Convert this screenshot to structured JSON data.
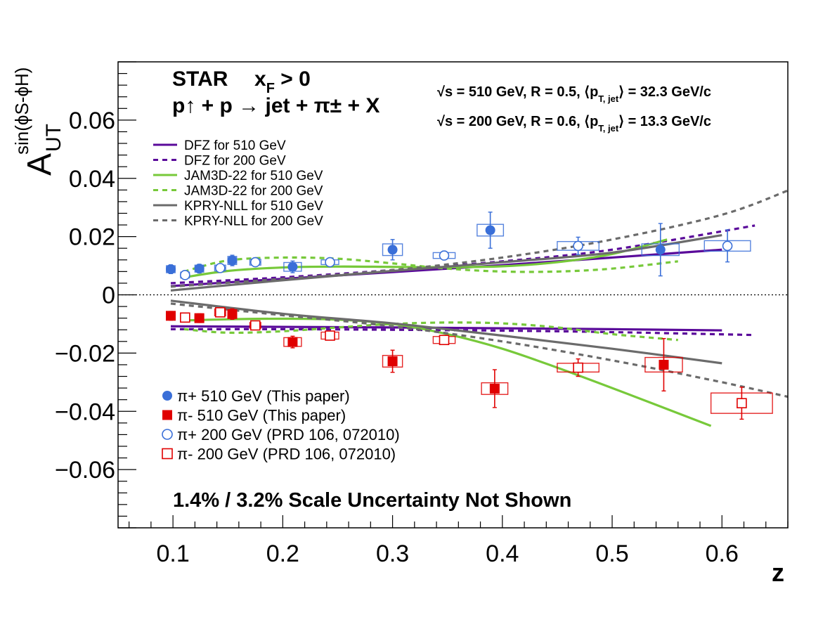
{
  "chart_data": {
    "type": "scatter",
    "header_line1": "STAR",
    "header_xf": "x",
    "header_xf_sub": "F",
    "header_xf_cut": " > 0",
    "header_line2": "p↑ + p → jet + π± + X",
    "energy_line1": "√s = 510 GeV, R = 0.5, ⟨p",
    "energy_line1_sub": "T, jet",
    "energy_line1_tail": "⟩ = 32.3 GeV/c",
    "energy_line2": "√s = 200 GeV, R = 0.6, ⟨p",
    "energy_line2_sub": "T, jet",
    "energy_line2_tail": "⟩ = 13.3 GeV/c",
    "footer": "1.4% / 3.2% Scale Uncertainty Not Shown",
    "xlabel": "z",
    "ylabel_main": "A",
    "ylabel_sub": "UT",
    "ylabel_sup": "sin(ϕS-ϕH)",
    "xlim": [
      0.05,
      0.66
    ],
    "ylim": [
      -0.08,
      0.08
    ],
    "x_ticks": [
      "0.1",
      "0.2",
      "0.3",
      "0.4",
      "0.5",
      "0.6"
    ],
    "y_ticks": [
      "−0.06",
      "−0.04",
      "−0.02",
      "0",
      "0.02",
      "0.04",
      "0.06"
    ],
    "colors": {
      "pi_plus": "#3a6fd8",
      "pi_minus": "#e00000",
      "dfz": "#5a0a9a",
      "jam": "#77c93a",
      "kpry": "#6b6b6b"
    },
    "series": [
      {
        "name": "π+ 510 GeV (This paper)",
        "marker": "filled-circle",
        "color": "#3a6fd8",
        "points": [
          {
            "x": 0.098,
            "y": 0.0088,
            "err": 0.0015,
            "sx": 0.004,
            "sy": 0.0012
          },
          {
            "x": 0.124,
            "y": 0.009,
            "err": 0.0015,
            "sx": 0.004,
            "sy": 0.0012
          },
          {
            "x": 0.154,
            "y": 0.0118,
            "err": 0.0018,
            "sx": 0.004,
            "sy": 0.0014
          },
          {
            "x": 0.209,
            "y": 0.0096,
            "err": 0.002,
            "sx": 0.008,
            "sy": 0.0015
          },
          {
            "x": 0.3,
            "y": 0.0155,
            "err": 0.0035,
            "sx": 0.009,
            "sy": 0.002
          },
          {
            "x": 0.389,
            "y": 0.0222,
            "err": 0.0062,
            "sx": 0.012,
            "sy": 0.002
          },
          {
            "x": 0.544,
            "y": 0.0155,
            "err": 0.009,
            "sx": 0.017,
            "sy": 0.002
          }
        ]
      },
      {
        "name": "π- 510 GeV (This paper)",
        "marker": "filled-square",
        "color": "#e00000",
        "points": [
          {
            "x": 0.098,
            "y": -0.0072,
            "err": 0.0015,
            "sx": 0.004,
            "sy": 0.0012
          },
          {
            "x": 0.124,
            "y": -0.008,
            "err": 0.0015,
            "sx": 0.004,
            "sy": 0.0012
          },
          {
            "x": 0.154,
            "y": -0.0066,
            "err": 0.0018,
            "sx": 0.004,
            "sy": 0.0014
          },
          {
            "x": 0.209,
            "y": -0.0162,
            "err": 0.002,
            "sx": 0.008,
            "sy": 0.0015
          },
          {
            "x": 0.3,
            "y": -0.0228,
            "err": 0.0038,
            "sx": 0.009,
            "sy": 0.002
          },
          {
            "x": 0.393,
            "y": -0.0322,
            "err": 0.0065,
            "sx": 0.012,
            "sy": 0.002
          },
          {
            "x": 0.547,
            "y": -0.024,
            "err": 0.009,
            "sx": 0.017,
            "sy": 0.0025
          }
        ]
      },
      {
        "name": "π+ 200 GeV (PRD 106, 072010)",
        "marker": "open-circle",
        "color": "#3a6fd8",
        "points": [
          {
            "x": 0.111,
            "y": 0.0068,
            "err": 0.0012,
            "sx": 0.004,
            "sy": 0.001
          },
          {
            "x": 0.143,
            "y": 0.0092,
            "err": 0.0012,
            "sx": 0.005,
            "sy": 0.001
          },
          {
            "x": 0.175,
            "y": 0.0112,
            "err": 0.0012,
            "sx": 0.005,
            "sy": 0.001
          },
          {
            "x": 0.243,
            "y": 0.0112,
            "err": 0.001,
            "sx": 0.008,
            "sy": 0.0008
          },
          {
            "x": 0.347,
            "y": 0.0135,
            "err": 0.0015,
            "sx": 0.01,
            "sy": 0.001
          },
          {
            "x": 0.469,
            "y": 0.0168,
            "err": 0.003,
            "sx": 0.019,
            "sy": 0.0015
          },
          {
            "x": 0.605,
            "y": 0.0168,
            "err": 0.0055,
            "sx": 0.021,
            "sy": 0.0018
          }
        ]
      },
      {
        "name": "π- 200 GeV (PRD 106, 072010)",
        "marker": "open-square",
        "color": "#e00000",
        "points": [
          {
            "x": 0.111,
            "y": -0.0078,
            "err": 0.0012,
            "sx": 0.004,
            "sy": 0.0012
          },
          {
            "x": 0.143,
            "y": -0.006,
            "err": 0.0012,
            "sx": 0.005,
            "sy": 0.0012
          },
          {
            "x": 0.175,
            "y": -0.0105,
            "err": 0.0012,
            "sx": 0.005,
            "sy": 0.001
          },
          {
            "x": 0.243,
            "y": -0.014,
            "err": 0.0012,
            "sx": 0.008,
            "sy": 0.0012
          },
          {
            "x": 0.347,
            "y": -0.0155,
            "err": 0.0015,
            "sx": 0.01,
            "sy": 0.0012
          },
          {
            "x": 0.469,
            "y": -0.025,
            "err": 0.003,
            "sx": 0.019,
            "sy": 0.0015
          },
          {
            "x": 0.618,
            "y": -0.0372,
            "err": 0.0055,
            "sx": 0.028,
            "sy": 0.0035
          }
        ]
      }
    ],
    "curves": [
      {
        "name": "DFZ for 510 GeV",
        "color": "#5a0a9a",
        "dash": false,
        "branches": [
          {
            "x": [
              0.098,
              0.2,
              0.3,
              0.4,
              0.5,
              0.6
            ],
            "y": [
              0.003,
              0.0055,
              0.0078,
              0.0102,
              0.0128,
              0.0155
            ]
          },
          {
            "x": [
              0.098,
              0.2,
              0.3,
              0.4,
              0.5,
              0.6
            ],
            "y": [
              -0.0108,
              -0.011,
              -0.0112,
              -0.0115,
              -0.0118,
              -0.0122
            ]
          }
        ]
      },
      {
        "name": "DFZ for 200 GeV",
        "color": "#5a0a9a",
        "dash": true,
        "branches": [
          {
            "x": [
              0.098,
              0.2,
              0.3,
              0.4,
              0.5,
              0.63
            ],
            "y": [
              0.004,
              0.006,
              0.0085,
              0.0115,
              0.0155,
              0.0238
            ]
          },
          {
            "x": [
              0.098,
              0.2,
              0.3,
              0.4,
              0.5,
              0.63
            ],
            "y": [
              -0.0118,
              -0.0118,
              -0.012,
              -0.0123,
              -0.0128,
              -0.0138
            ]
          }
        ]
      },
      {
        "name": "JAM3D-22 for 510 GeV",
        "color": "#77c93a",
        "dash": false,
        "branches": [
          {
            "x": [
              0.11,
              0.15,
              0.2,
              0.25,
              0.3,
              0.35,
              0.4,
              0.45,
              0.5,
              0.55
            ],
            "y": [
              0.006,
              0.0082,
              0.0094,
              0.0097,
              0.0096,
              0.0095,
              0.0098,
              0.0112,
              0.014,
              0.019
            ]
          },
          {
            "x": [
              0.11,
              0.15,
              0.2,
              0.25,
              0.3,
              0.35,
              0.4,
              0.45,
              0.5,
              0.59
            ],
            "y": [
              -0.0088,
              -0.0084,
              -0.0082,
              -0.0085,
              -0.01,
              -0.0135,
              -0.0185,
              -0.025,
              -0.032,
              -0.045
            ]
          }
        ]
      },
      {
        "name": "JAM3D-22 for 200 GeV",
        "color": "#77c93a",
        "dash": true,
        "branches": [
          {
            "x": [
              0.11,
              0.15,
              0.2,
              0.25,
              0.3,
              0.35,
              0.4,
              0.45,
              0.5,
              0.56
            ],
            "y": [
              0.008,
              0.0118,
              0.0128,
              0.0124,
              0.0108,
              0.009,
              0.008,
              0.008,
              0.009,
              0.0115
            ]
          },
          {
            "x": [
              0.11,
              0.15,
              0.2,
              0.25,
              0.3,
              0.35,
              0.4,
              0.45,
              0.5,
              0.56
            ],
            "y": [
              -0.0118,
              -0.013,
              -0.0125,
              -0.0112,
              -0.01,
              -0.0095,
              -0.0098,
              -0.0112,
              -0.0135,
              -0.0155
            ]
          }
        ]
      },
      {
        "name": "KPRY-NLL for 510 GeV",
        "color": "#6b6b6b",
        "dash": false,
        "branches": [
          {
            "x": [
              0.098,
              0.2,
              0.3,
              0.4,
              0.5,
              0.6
            ],
            "y": [
              0.0015,
              0.005,
              0.0082,
              0.0112,
              0.0145,
              0.0205
            ]
          },
          {
            "x": [
              0.098,
              0.2,
              0.3,
              0.4,
              0.5,
              0.6
            ],
            "y": [
              -0.002,
              -0.0065,
              -0.0098,
              -0.014,
              -0.0185,
              -0.0235
            ]
          }
        ]
      },
      {
        "name": "KPRY-NLL for 200 GeV",
        "color": "#6b6b6b",
        "dash": true,
        "branches": [
          {
            "x": [
              0.098,
              0.2,
              0.3,
              0.4,
              0.5,
              0.6,
              0.66
            ],
            "y": [
              0.0028,
              0.0055,
              0.0085,
              0.0128,
              0.019,
              0.0275,
              0.0358
            ]
          },
          {
            "x": [
              0.098,
              0.2,
              0.3,
              0.4,
              0.5,
              0.6,
              0.66
            ],
            "y": [
              -0.003,
              -0.007,
              -0.0108,
              -0.016,
              -0.0225,
              -0.03,
              -0.035
            ]
          }
        ]
      }
    ]
  }
}
